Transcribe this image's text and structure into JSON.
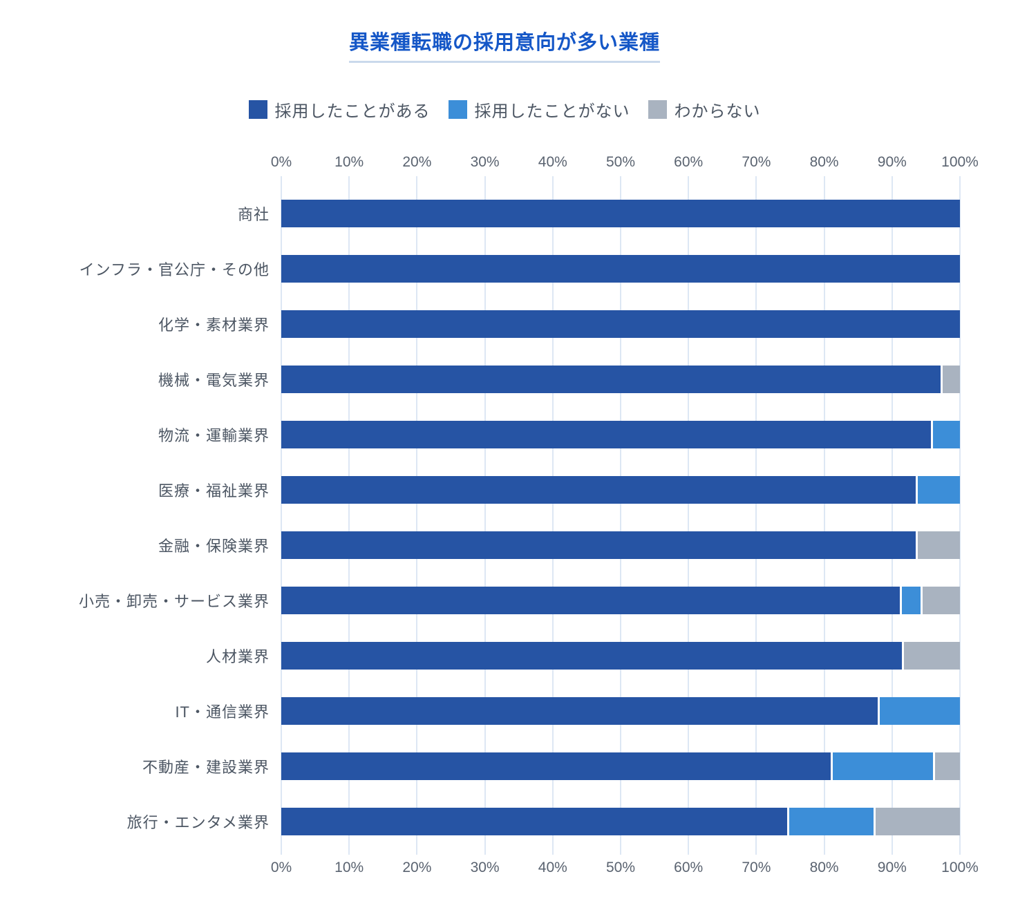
{
  "chart_data": {
    "type": "bar",
    "orientation": "horizontal",
    "stacked": true,
    "title": "異業種転職の採用意向が多い業種",
    "categories": [
      "商社",
      "インフラ・官公庁・その他",
      "化学・素材業界",
      "機械・電気業界",
      "物流・運輸業界",
      "医療・福祉業界",
      "金融・保険業界",
      "小売・卸売・サービス業界",
      "人材業界",
      "IT・通信業界",
      "不動産・建設業界",
      "旅行・エンタメ業界"
    ],
    "series": [
      {
        "key": "hired",
        "name": "採用したことがある",
        "color": "#2654A4",
        "values": [
          100,
          100,
          100,
          97.4,
          96,
          93.8,
          93.8,
          91.7,
          91.7,
          88.2,
          81.5,
          75
        ]
      },
      {
        "key": "not-hired",
        "name": "採用したことがない",
        "color": "#3C8ED8",
        "values": [
          0,
          0,
          0,
          0,
          4,
          6.2,
          0,
          2.8,
          0,
          11.8,
          14.8,
          12.5
        ]
      },
      {
        "key": "unknown",
        "name": "わからない",
        "color": "#A9B3C0",
        "values": [
          0,
          0,
          0,
          2.6,
          0,
          0,
          6.2,
          5.5,
          8.3,
          0,
          3.7,
          12.5
        ]
      }
    ],
    "x_ticks": [
      "0%",
      "10%",
      "20%",
      "30%",
      "40%",
      "50%",
      "60%",
      "70%",
      "80%",
      "90%",
      "100%"
    ],
    "xlim": [
      0,
      100
    ],
    "legend_position": "top",
    "grid": "vertical",
    "colors": {
      "title": "#1557C7",
      "title_underline": "#CAD9EC",
      "label_text": "#4C5663",
      "tick_text": "#5A6370",
      "gridline": "#DDE7F4",
      "background": "#FFFFFF"
    }
  }
}
